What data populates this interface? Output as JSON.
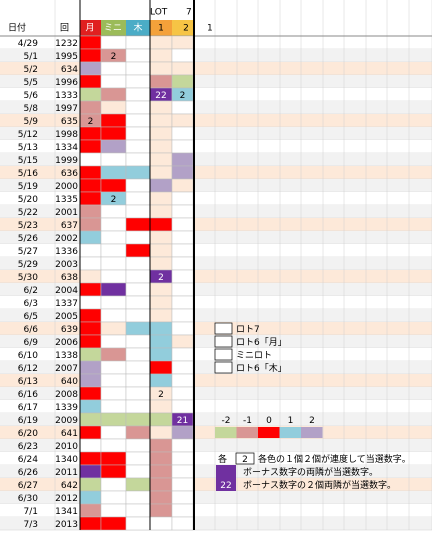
{
  "header": {
    "lot": "LOT",
    "lot_num": "7",
    "date": "日付",
    "kai": "回",
    "getsu": "月",
    "mini": "ミニ",
    "moku": "木",
    "lot_1": "1",
    "lot_2": "2",
    "extra": "1"
  },
  "rows": [
    {
      "date": "4/29",
      "kai": "1232"
    },
    {
      "date": "5/1",
      "kai": "1995",
      "mini": "2"
    },
    {
      "date": "5/2",
      "kai": "634"
    },
    {
      "date": "5/5",
      "kai": "1996"
    },
    {
      "date": "5/6",
      "kai": "1333",
      "lot1": "22",
      "lot2": "2"
    },
    {
      "date": "5/8",
      "kai": "1997"
    },
    {
      "date": "5/9",
      "kai": "635",
      "getsu": "2"
    },
    {
      "date": "5/12",
      "kai": "1998"
    },
    {
      "date": "5/13",
      "kai": "1334"
    },
    {
      "date": "5/15",
      "kai": "1999"
    },
    {
      "date": "5/16",
      "kai": "636"
    },
    {
      "date": "5/19",
      "kai": "2000"
    },
    {
      "date": "5/20",
      "kai": "1335",
      "mini": "2"
    },
    {
      "date": "5/22",
      "kai": "2001"
    },
    {
      "date": "5/23",
      "kai": "637"
    },
    {
      "date": "5/26",
      "kai": "2002"
    },
    {
      "date": "5/27",
      "kai": "1336"
    },
    {
      "date": "5/29",
      "kai": "2003"
    },
    {
      "date": "5/30",
      "kai": "638",
      "lot1": "2"
    },
    {
      "date": "6/2",
      "kai": "2004"
    },
    {
      "date": "6/3",
      "kai": "1337"
    },
    {
      "date": "6/5",
      "kai": "2005"
    },
    {
      "date": "6/6",
      "kai": "639"
    },
    {
      "date": "6/9",
      "kai": "2006"
    },
    {
      "date": "6/10",
      "kai": "1338"
    },
    {
      "date": "6/12",
      "kai": "2007"
    },
    {
      "date": "6/13",
      "kai": "640"
    },
    {
      "date": "6/16",
      "kai": "2008",
      "lot1": "2"
    },
    {
      "date": "6/17",
      "kai": "1339"
    },
    {
      "date": "6/19",
      "kai": "2009",
      "lot2": "21"
    },
    {
      "date": "6/20",
      "kai": "641"
    },
    {
      "date": "6/23",
      "kai": "2010"
    },
    {
      "date": "6/24",
      "kai": "1340"
    },
    {
      "date": "6/26",
      "kai": "2011"
    },
    {
      "date": "6/27",
      "kai": "642"
    },
    {
      "date": "6/30",
      "kai": "2012"
    },
    {
      "date": "7/1",
      "kai": "1341"
    },
    {
      "date": "7/3",
      "kai": "2013"
    }
  ],
  "legend": [
    "ロト7",
    "ロト6「月」",
    "ミニロト",
    "ロト6「木」"
  ],
  "scale": [
    -2,
    -1,
    0,
    1,
    2
  ],
  "notes": {
    "kaku": "各",
    "box": "2",
    "line1": "各色の１個２個が連度して当選数字。",
    "line2": "ボーナス数字の両隣が当選数字。",
    "box3": "22",
    "line3": "ボーナス数字の２個両隣が当選数字。"
  }
}
